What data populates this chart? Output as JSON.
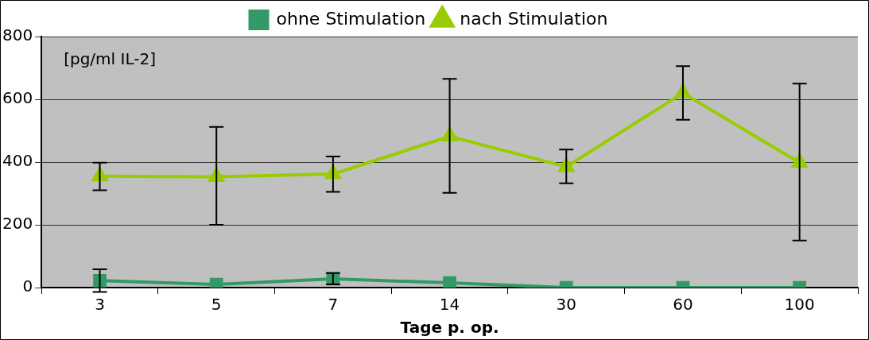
{
  "chart_data": {
    "type": "line",
    "xlabel": "Tage p. op.",
    "ylabel": "[pg/ml IL-2]",
    "categories": [
      "3",
      "5",
      "7",
      "14",
      "30",
      "60",
      "100"
    ],
    "series": [
      {
        "name": "ohne Stimulation",
        "color": "#339966",
        "marker": "square",
        "values": [
          22,
          10,
          28,
          15,
          0,
          0,
          0
        ],
        "errors": [
          36,
          null,
          18,
          null,
          null,
          null,
          null
        ]
      },
      {
        "name": "nach Stimulation",
        "color": "#99cc00",
        "marker": "triangle",
        "values": [
          355,
          353,
          362,
          482,
          385,
          620,
          398
        ],
        "errors": [
          [
            310,
            398
          ],
          [
            200,
            512
          ],
          [
            305,
            418
          ],
          [
            302,
            665
          ],
          [
            332,
            440
          ],
          [
            535,
            706
          ],
          [
            150,
            650
          ]
        ]
      }
    ],
    "ylim": [
      0,
      800
    ],
    "yticks": [
      0,
      200,
      400,
      600,
      800
    ],
    "grid": "y",
    "legend": "top"
  }
}
